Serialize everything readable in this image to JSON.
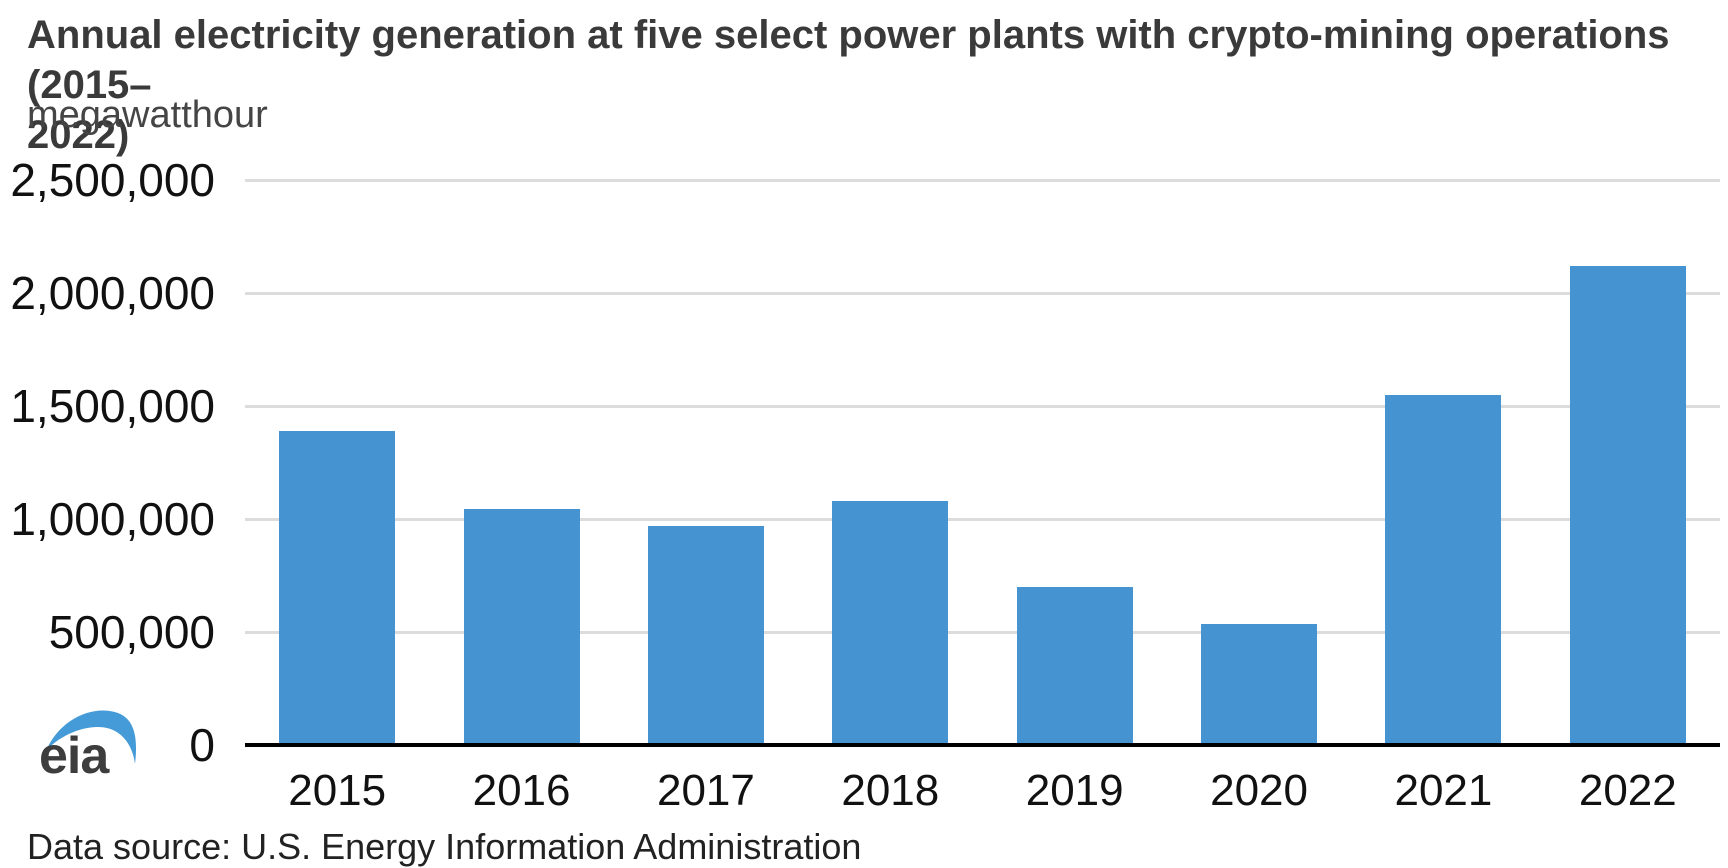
{
  "header": {
    "title_line1": "Annual electricity generation at five select power plants with crypto-mining operations (2015–",
    "title_line2": "2022)",
    "unit_label": "megawatthour"
  },
  "chart_data": {
    "type": "bar",
    "title": "Annual electricity generation at five select power plants with crypto-mining operations (2015–2022)",
    "ylabel": "megawatthour",
    "xlabel": "",
    "categories": [
      "2015",
      "2016",
      "2017",
      "2018",
      "2019",
      "2020",
      "2021",
      "2022"
    ],
    "values": [
      1390000,
      1045000,
      970000,
      1080000,
      700000,
      535000,
      1550000,
      2120000
    ],
    "ylim": [
      0,
      2500000
    ],
    "yticks": {
      "values": [
        0,
        500000,
        1000000,
        1500000,
        2000000,
        2500000
      ],
      "labels": [
        "0",
        "500,000",
        "1,000,000",
        "1,500,000",
        "2,000,000",
        "2,500,000"
      ]
    },
    "grid": "horizontal",
    "legend": "none",
    "bar_color": "#4594d1",
    "gridline_color": "#dcdcdc",
    "axis_color": "#000000"
  },
  "branding": {
    "logo_text": "eia",
    "logo_swoosh_color": "#459bd8",
    "logo_text_color": "#3d3d3d"
  },
  "caption": {
    "text": "Data source: U.S. Energy Information Administration"
  }
}
